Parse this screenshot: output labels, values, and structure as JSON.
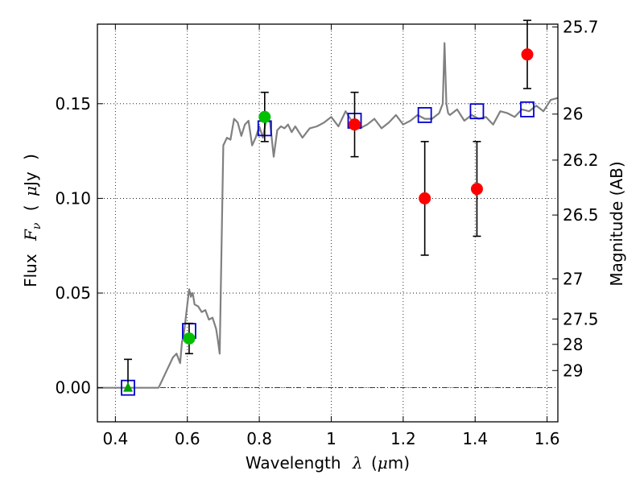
{
  "chart_data": {
    "type": "scatter",
    "xlabel": {
      "text": "Wavelength",
      "symbol": "λ",
      "unit_open": "(",
      "unit_mu": "μ",
      "unit_rest": "m)"
    },
    "ylabel": {
      "text": "Flux",
      "symbol": "F",
      "sub": "ν",
      "unit_open": "(",
      "unit_mu": "μ",
      "unit_rest": "Jy",
      "unit_close": ")"
    },
    "y2label": "Magnitude (AB)",
    "xlim": [
      0.35,
      1.63
    ],
    "ylim": [
      -0.018,
      0.192
    ],
    "xticks": [
      0.4,
      0.6,
      0.8,
      1.0,
      1.2,
      1.4,
      1.6
    ],
    "xtick_labels": [
      "0.4",
      "0.6",
      "0.8",
      "1",
      "1.2",
      "1.4",
      "1.6"
    ],
    "yticks": [
      0.0,
      0.05,
      0.1,
      0.15
    ],
    "ytick_labels": [
      "0.00",
      "0.05",
      "0.10",
      "0.15"
    ],
    "y2ticks": [
      {
        "label": "25.7",
        "flux": 0.1905
      },
      {
        "label": "26",
        "flux": 0.1445
      },
      {
        "label": "26.2",
        "flux": 0.1202
      },
      {
        "label": "26.5",
        "flux": 0.0912
      },
      {
        "label": "27",
        "flux": 0.0575
      },
      {
        "label": "27.5",
        "flux": 0.0363
      },
      {
        "label": "28",
        "flux": 0.0229
      },
      {
        "label": "29",
        "flux": 0.0091
      }
    ],
    "grid": true,
    "zero_line": true,
    "colors": {
      "model": "#808080",
      "photometry_red": "#ff0000",
      "photometry_green": "#00c000",
      "model_box": "#0000cc",
      "errorbar": "#000000",
      "upper_limit": "#00a000"
    },
    "model_spectrum": {
      "x": [
        0.35,
        0.52,
        0.54,
        0.56,
        0.57,
        0.58,
        0.585,
        0.59,
        0.6,
        0.605,
        0.61,
        0.615,
        0.62,
        0.63,
        0.64,
        0.65,
        0.66,
        0.67,
        0.68,
        0.685,
        0.69,
        0.7,
        0.71,
        0.72,
        0.73,
        0.74,
        0.75,
        0.76,
        0.77,
        0.78,
        0.79,
        0.8,
        0.81,
        0.82,
        0.83,
        0.84,
        0.85,
        0.86,
        0.87,
        0.88,
        0.89,
        0.9,
        0.92,
        0.94,
        0.96,
        0.98,
        1.0,
        1.02,
        1.04,
        1.06,
        1.08,
        1.1,
        1.12,
        1.14,
        1.16,
        1.18,
        1.2,
        1.22,
        1.24,
        1.26,
        1.28,
        1.3,
        1.31,
        1.315,
        1.32,
        1.325,
        1.33,
        1.35,
        1.37,
        1.39,
        1.41,
        1.43,
        1.45,
        1.47,
        1.49,
        1.51,
        1.53,
        1.55,
        1.57,
        1.59,
        1.61,
        1.63
      ],
      "y": [
        0.0,
        0.0,
        0.008,
        0.016,
        0.018,
        0.013,
        0.024,
        0.028,
        0.044,
        0.052,
        0.048,
        0.05,
        0.044,
        0.043,
        0.04,
        0.041,
        0.036,
        0.037,
        0.031,
        0.025,
        0.018,
        0.128,
        0.132,
        0.131,
        0.142,
        0.14,
        0.133,
        0.139,
        0.141,
        0.128,
        0.132,
        0.138,
        0.132,
        0.142,
        0.14,
        0.122,
        0.136,
        0.138,
        0.137,
        0.139,
        0.135,
        0.138,
        0.132,
        0.137,
        0.138,
        0.14,
        0.143,
        0.138,
        0.146,
        0.14,
        0.137,
        0.139,
        0.142,
        0.137,
        0.14,
        0.144,
        0.139,
        0.141,
        0.144,
        0.142,
        0.142,
        0.145,
        0.15,
        0.182,
        0.15,
        0.145,
        0.144,
        0.147,
        0.141,
        0.144,
        0.142,
        0.143,
        0.139,
        0.146,
        0.145,
        0.143,
        0.147,
        0.146,
        0.149,
        0.146,
        0.152,
        0.153
      ]
    },
    "series": [
      {
        "marker": "square-open",
        "x": [
          0.435,
          0.605,
          0.815,
          1.065,
          1.26,
          1.405,
          1.545
        ],
        "y": [
          0.0,
          0.03,
          0.137,
          0.141,
          0.144,
          0.146,
          0.147
        ]
      },
      {
        "marker": "circle-red",
        "x": [
          1.065,
          1.26,
          1.405,
          1.545
        ],
        "y": [
          0.139,
          0.1,
          0.105,
          0.176
        ],
        "err": [
          0.017,
          0.03,
          0.025,
          0.018
        ]
      },
      {
        "marker": "circle-green",
        "x": [
          0.605,
          0.815
        ],
        "y": [
          0.026,
          0.143
        ],
        "err": [
          0.008,
          0.013
        ]
      },
      {
        "marker": "triangle-green",
        "x": [
          0.435
        ],
        "y": [
          0.0
        ],
        "err_up": [
          0.015
        ]
      }
    ]
  }
}
